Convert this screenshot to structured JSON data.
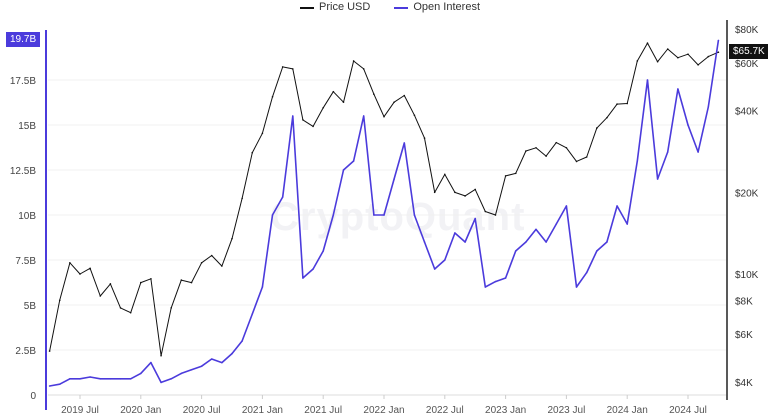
{
  "chart_data": {
    "type": "line",
    "title": "",
    "legend": [
      "Price USD",
      "Open Interest"
    ],
    "legend_position": "top",
    "watermark": "CryptoQuant",
    "x_ticks": [
      "2019 Jul",
      "2020 Jan",
      "2020 Jul",
      "2021 Jan",
      "2021 Jul",
      "2022 Jan",
      "2022 Jul",
      "2023 Jan",
      "2023 Jul",
      "2024 Jan",
      "2024 Jul"
    ],
    "left_axis": {
      "ticks": [
        "0",
        "2.5B",
        "5B",
        "7.5B",
        "10B",
        "12.5B",
        "15B",
        "17.5B"
      ],
      "tick_values": [
        0,
        2.5,
        5,
        7.5,
        10,
        12.5,
        15,
        17.5
      ],
      "ylim": [
        0,
        20.5
      ],
      "unit": "B",
      "color": "#4b3bdc",
      "current_label": "19.7B"
    },
    "right_axis": {
      "scale": "log",
      "ticks": [
        "$4K",
        "$6K",
        "$8K",
        "$10K",
        "$20K",
        "$40K",
        "$60K",
        "$80K"
      ],
      "tick_values": [
        4000,
        6000,
        8000,
        10000,
        20000,
        40000,
        60000,
        80000
      ],
      "ylim": [
        4000,
        80000
      ],
      "current_label": "$65.7K"
    },
    "grid": "horizontal",
    "x": [
      "2019-04",
      "2019-05",
      "2019-06",
      "2019-07",
      "2019-08",
      "2019-09",
      "2019-10",
      "2019-11",
      "2019-12",
      "2020-01",
      "2020-02",
      "2020-03",
      "2020-04",
      "2020-05",
      "2020-06",
      "2020-07",
      "2020-08",
      "2020-09",
      "2020-10",
      "2020-11",
      "2020-12",
      "2021-01",
      "2021-02",
      "2021-03",
      "2021-04",
      "2021-05",
      "2021-06",
      "2021-07",
      "2021-08",
      "2021-09",
      "2021-10",
      "2021-11",
      "2021-12",
      "2022-01",
      "2022-02",
      "2022-03",
      "2022-04",
      "2022-05",
      "2022-06",
      "2022-07",
      "2022-08",
      "2022-09",
      "2022-10",
      "2022-11",
      "2022-12",
      "2023-01",
      "2023-02",
      "2023-03",
      "2023-04",
      "2023-05",
      "2023-06",
      "2023-07",
      "2023-08",
      "2023-09",
      "2023-10",
      "2023-11",
      "2023-12",
      "2024-01",
      "2024-02",
      "2024-03",
      "2024-04",
      "2024-05",
      "2024-06",
      "2024-07",
      "2024-08",
      "2024-09",
      "2024-10"
    ],
    "series": [
      {
        "name": "Price USD",
        "axis": "right",
        "color": "#111111",
        "values": [
          5200,
          8000,
          11000,
          10000,
          10500,
          8300,
          9200,
          7500,
          7200,
          9300,
          9600,
          5000,
          7500,
          9500,
          9300,
          11000,
          11700,
          10700,
          13500,
          19000,
          28000,
          33000,
          45000,
          58000,
          57000,
          37000,
          35000,
          41000,
          47000,
          43000,
          61000,
          57000,
          46000,
          38000,
          43000,
          45500,
          38500,
          31700,
          20000,
          23300,
          20000,
          19400,
          20500,
          17000,
          16500,
          23000,
          23500,
          28400,
          29200,
          27200,
          30500,
          29200,
          26000,
          27000,
          34500,
          37700,
          42300,
          42500,
          61000,
          71000,
          60600,
          67500,
          62700,
          64600,
          59000,
          63300,
          65700
        ]
      },
      {
        "name": "Open Interest",
        "axis": "left",
        "color": "#4b3bdc",
        "values": [
          0.5,
          0.6,
          0.9,
          0.9,
          1.0,
          0.9,
          0.9,
          0.9,
          0.9,
          1.2,
          1.8,
          0.7,
          0.9,
          1.2,
          1.4,
          1.6,
          2.0,
          1.8,
          2.3,
          3.0,
          4.5,
          6.0,
          10.0,
          11.0,
          15.5,
          6.5,
          7.0,
          8.0,
          10.0,
          12.5,
          13.0,
          15.5,
          10.0,
          10.0,
          12.0,
          14.0,
          10.0,
          8.5,
          7.0,
          7.5,
          9.0,
          8.5,
          9.8,
          6.0,
          6.3,
          6.5,
          8.0,
          8.5,
          9.2,
          8.5,
          9.5,
          10.5,
          6.0,
          6.8,
          8.0,
          8.5,
          10.5,
          9.5,
          13.0,
          17.5,
          12.0,
          13.5,
          17.0,
          15.0,
          13.5,
          16.0,
          19.7
        ]
      }
    ]
  }
}
